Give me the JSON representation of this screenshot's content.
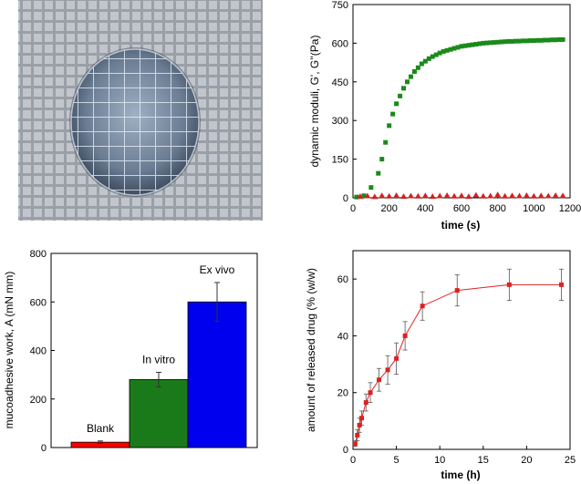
{
  "photo": {
    "background_color": "#9aa0a8",
    "grid_color": "#c9ccd2",
    "disc_color": "#5f6f83"
  },
  "chart_data": [
    {
      "id": "rheology",
      "type": "scatter",
      "title": "",
      "xlabel": "time (s)",
      "ylabel": "dynamic moduli, G', G''(Pa)",
      "xlim": [
        0,
        1200
      ],
      "ylim": [
        0,
        750
      ],
      "xticks": [
        0,
        200,
        400,
        600,
        800,
        1000,
        1200
      ],
      "yticks": [
        0,
        150,
        300,
        450,
        600,
        750
      ],
      "grid": false,
      "series": [
        {
          "marker": "square",
          "color": "#1a8a1a",
          "x": [
            20,
            60,
            100,
            140,
            160,
            180,
            200,
            220,
            240,
            260,
            280,
            300,
            320,
            340,
            360,
            380,
            400,
            420,
            440,
            460,
            480,
            500,
            520,
            540,
            560,
            580,
            600,
            620,
            640,
            660,
            680,
            700,
            720,
            740,
            760,
            780,
            800,
            820,
            840,
            860,
            880,
            900,
            920,
            940,
            960,
            980,
            1000,
            1020,
            1040,
            1060,
            1080,
            1100,
            1120,
            1140,
            1160
          ],
          "y": [
            3,
            8,
            40,
            95,
            150,
            215,
            280,
            325,
            365,
            395,
            425,
            450,
            470,
            490,
            505,
            520,
            530,
            540,
            548,
            555,
            562,
            568,
            572,
            576,
            580,
            584,
            588,
            590,
            592,
            594,
            596,
            598,
            600,
            601,
            602,
            603,
            604,
            605,
            606,
            607,
            607,
            608,
            608,
            609,
            609,
            610,
            610,
            611,
            611,
            612,
            612,
            613,
            613,
            614,
            614
          ]
        },
        {
          "marker": "triangle",
          "color": "#d42020",
          "x": [
            40,
            80,
            120,
            160,
            200,
            240,
            280,
            320,
            360,
            400,
            440,
            480,
            520,
            560,
            600,
            640,
            680,
            720,
            760,
            800,
            840,
            880,
            920,
            960,
            1000,
            1040,
            1080,
            1120,
            1160
          ],
          "y": [
            5,
            7,
            4,
            8,
            6,
            9,
            5,
            7,
            6,
            8,
            5,
            7,
            9,
            6,
            8,
            5,
            10,
            6,
            7,
            12,
            6,
            8,
            7,
            9,
            6,
            8,
            7,
            9,
            8
          ]
        }
      ]
    },
    {
      "id": "mucoadhesion",
      "type": "bar",
      "title": "",
      "xlabel": "",
      "ylabel": "mucoadhesive work, A (mN mm)",
      "ylim": [
        0,
        800
      ],
      "yticks": [
        0,
        200,
        400,
        600,
        800
      ],
      "categories": [
        "Blank",
        "In vitro",
        "Ex vivo"
      ],
      "values": [
        22,
        280,
        600
      ],
      "errors": [
        5,
        30,
        80
      ],
      "colors": [
        "#ff0000",
        "#1a7a1a",
        "#0000ee"
      ]
    },
    {
      "id": "release",
      "type": "line",
      "title": "",
      "xlabel": "time (h)",
      "ylabel": "amount of released drug (% (w/w)",
      "xlim": [
        0,
        25
      ],
      "ylim": [
        0,
        70
      ],
      "xticks": [
        0,
        5,
        10,
        15,
        20,
        25
      ],
      "yticks": [
        0,
        20,
        40,
        60
      ],
      "grid": false,
      "series": [
        {
          "color": "#e02020",
          "marker": "square",
          "x": [
            0.25,
            0.5,
            0.75,
            1,
            1.5,
            2,
            3,
            4,
            5,
            6,
            8,
            12,
            18,
            24
          ],
          "y": [
            2,
            5,
            8.5,
            11,
            16.5,
            20,
            24.5,
            28,
            32,
            40,
            50.5,
            56,
            58,
            58
          ],
          "err": [
            1,
            2,
            2.5,
            2.5,
            3,
            3.5,
            4,
            5,
            5.5,
            5,
            5,
            5.5,
            5.5,
            5.5
          ]
        }
      ]
    }
  ]
}
